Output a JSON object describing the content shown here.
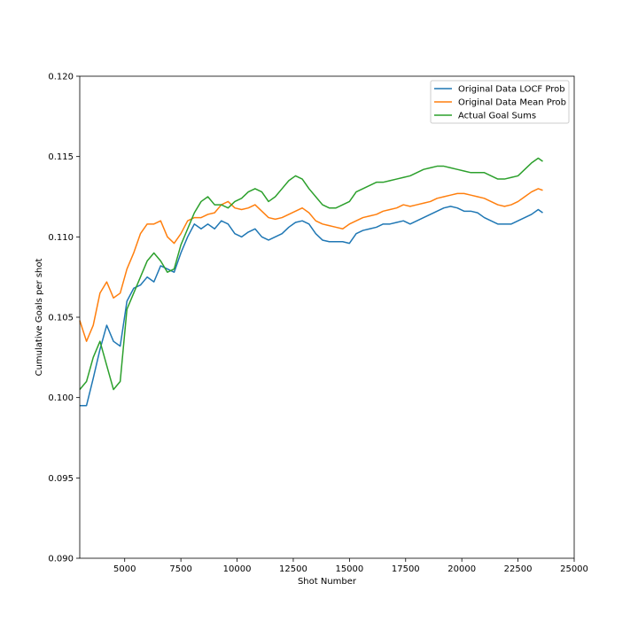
{
  "chart_data": {
    "type": "line",
    "title": "",
    "xlabel": "Shot Number",
    "ylabel": "Cumulative Goals per shot",
    "xlim": [
      3000,
      25000
    ],
    "ylim": [
      0.09,
      0.12
    ],
    "xticks": [
      5000,
      7500,
      10000,
      12500,
      15000,
      17500,
      20000,
      22500,
      25000
    ],
    "xtick_labels": [
      "5000",
      "7500",
      "10000",
      "12500",
      "15000",
      "17500",
      "20000",
      "22500",
      "25000"
    ],
    "yticks": [
      0.09,
      0.095,
      0.1,
      0.105,
      0.11,
      0.115,
      0.12
    ],
    "ytick_labels": [
      "0.090",
      "0.095",
      "0.100",
      "0.105",
      "0.110",
      "0.115",
      "0.120"
    ],
    "grid": false,
    "legend_position": "top-right",
    "series": [
      {
        "name": "Original Data LOCF Prob",
        "color": "#1f77b4",
        "x": [
          3000,
          3300,
          3600,
          3900,
          4200,
          4500,
          4800,
          5100,
          5400,
          5700,
          6000,
          6300,
          6600,
          6900,
          7200,
          7500,
          7800,
          8100,
          8400,
          8700,
          9000,
          9300,
          9600,
          9900,
          10200,
          10500,
          10800,
          11100,
          11400,
          11700,
          12000,
          12300,
          12600,
          12900,
          13200,
          13500,
          13800,
          14100,
          14400,
          14700,
          15000,
          15300,
          15600,
          15900,
          16200,
          16500,
          16800,
          17100,
          17400,
          17700,
          18000,
          18300,
          18600,
          18900,
          19200,
          19500,
          19800,
          20100,
          20400,
          20700,
          21000,
          21300,
          21600,
          21900,
          22200,
          22500,
          22800,
          23100,
          23400,
          23600
        ],
        "y": [
          0.0995,
          0.0995,
          0.1012,
          0.103,
          0.1045,
          0.1035,
          0.1032,
          0.106,
          0.1068,
          0.107,
          0.1075,
          0.1072,
          0.1082,
          0.108,
          0.1078,
          0.109,
          0.11,
          0.1108,
          0.1105,
          0.1108,
          0.1105,
          0.111,
          0.1108,
          0.1102,
          0.11,
          0.1103,
          0.1105,
          0.11,
          0.1098,
          0.11,
          0.1102,
          0.1106,
          0.1109,
          0.111,
          0.1108,
          0.1102,
          0.1098,
          0.1097,
          0.1097,
          0.1097,
          0.1096,
          0.1102,
          0.1104,
          0.1105,
          0.1106,
          0.1108,
          0.1108,
          0.1109,
          0.111,
          0.1108,
          0.111,
          0.1112,
          0.1114,
          0.1116,
          0.1118,
          0.1119,
          0.1118,
          0.1116,
          0.1116,
          0.1115,
          0.1112,
          0.111,
          0.1108,
          0.1108,
          0.1108,
          0.111,
          0.1112,
          0.1114,
          0.1117,
          0.1115
        ]
      },
      {
        "name": "Original Data Mean Prob",
        "color": "#ff7f0e",
        "x": [
          3000,
          3300,
          3600,
          3900,
          4200,
          4500,
          4800,
          5100,
          5400,
          5700,
          6000,
          6300,
          6600,
          6900,
          7200,
          7500,
          7800,
          8100,
          8400,
          8700,
          9000,
          9300,
          9600,
          9900,
          10200,
          10500,
          10800,
          11100,
          11400,
          11700,
          12000,
          12300,
          12600,
          12900,
          13200,
          13500,
          13800,
          14100,
          14400,
          14700,
          15000,
          15300,
          15600,
          15900,
          16200,
          16500,
          16800,
          17100,
          17400,
          17700,
          18000,
          18300,
          18600,
          18900,
          19200,
          19500,
          19800,
          20100,
          20400,
          20700,
          21000,
          21300,
          21600,
          21900,
          22200,
          22500,
          22800,
          23100,
          23400,
          23600
        ],
        "y": [
          0.1048,
          0.1035,
          0.1045,
          0.1065,
          0.1072,
          0.1062,
          0.1065,
          0.108,
          0.109,
          0.1102,
          0.1108,
          0.1108,
          0.111,
          0.11,
          0.1096,
          0.1102,
          0.111,
          0.1112,
          0.1112,
          0.1114,
          0.1115,
          0.112,
          0.1122,
          0.1118,
          0.1117,
          0.1118,
          0.112,
          0.1116,
          0.1112,
          0.1111,
          0.1112,
          0.1114,
          0.1116,
          0.1118,
          0.1115,
          0.111,
          0.1108,
          0.1107,
          0.1106,
          0.1105,
          0.1108,
          0.111,
          0.1112,
          0.1113,
          0.1114,
          0.1116,
          0.1117,
          0.1118,
          0.112,
          0.1119,
          0.112,
          0.1121,
          0.1122,
          0.1124,
          0.1125,
          0.1126,
          0.1127,
          0.1127,
          0.1126,
          0.1125,
          0.1124,
          0.1122,
          0.112,
          0.1119,
          0.112,
          0.1122,
          0.1125,
          0.1128,
          0.113,
          0.1129
        ]
      },
      {
        "name": "Actual Goal Sums",
        "color": "#2ca02c",
        "x": [
          3000,
          3300,
          3600,
          3900,
          4200,
          4500,
          4800,
          5100,
          5400,
          5700,
          6000,
          6300,
          6600,
          6900,
          7200,
          7500,
          7800,
          8100,
          8400,
          8700,
          9000,
          9300,
          9600,
          9900,
          10200,
          10500,
          10800,
          11100,
          11400,
          11700,
          12000,
          12300,
          12600,
          12900,
          13200,
          13500,
          13800,
          14100,
          14400,
          14700,
          15000,
          15300,
          15600,
          15900,
          16200,
          16500,
          16800,
          17100,
          17400,
          17700,
          18000,
          18300,
          18600,
          18900,
          19200,
          19500,
          19800,
          20100,
          20400,
          20700,
          21000,
          21300,
          21600,
          21900,
          22200,
          22500,
          22800,
          23100,
          23400,
          23600
        ],
        "y": [
          0.1005,
          0.101,
          0.1025,
          0.1035,
          0.102,
          0.1005,
          0.101,
          0.1055,
          0.1065,
          0.1075,
          0.1085,
          0.109,
          0.1085,
          0.1078,
          0.108,
          0.1095,
          0.1105,
          0.1115,
          0.1122,
          0.1125,
          0.112,
          0.112,
          0.1118,
          0.1122,
          0.1124,
          0.1128,
          0.113,
          0.1128,
          0.1122,
          0.1125,
          0.113,
          0.1135,
          0.1138,
          0.1136,
          0.113,
          0.1125,
          0.112,
          0.1118,
          0.1118,
          0.112,
          0.1122,
          0.1128,
          0.113,
          0.1132,
          0.1134,
          0.1134,
          0.1135,
          0.1136,
          0.1137,
          0.1138,
          0.114,
          0.1142,
          0.1143,
          0.1144,
          0.1144,
          0.1143,
          0.1142,
          0.1141,
          0.114,
          0.114,
          0.114,
          0.1138,
          0.1136,
          0.1136,
          0.1137,
          0.1138,
          0.1142,
          0.1146,
          0.1149,
          0.1147
        ]
      }
    ]
  }
}
